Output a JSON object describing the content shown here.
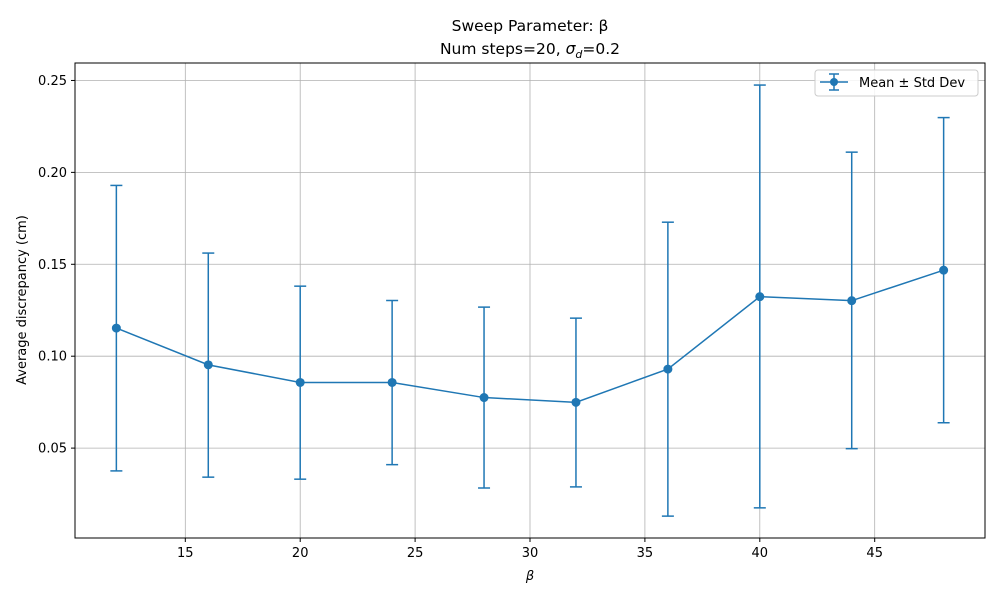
{
  "chart_data": {
    "type": "line",
    "title_line1": "Sweep Parameter: β",
    "title_line2_prefix": "Num steps=20, ",
    "title_line2_sigma": "σ",
    "title_line2_sub": "d",
    "title_line2_suffix": "=0.2",
    "xlabel": "β",
    "ylabel": "Average discrepancy (cm)",
    "x": [
      12,
      16,
      20,
      24,
      28,
      32,
      36,
      40,
      44,
      48
    ],
    "series": [
      {
        "name": "Mean ± Std Dev",
        "y": [
          0.1153,
          0.0953,
          0.0857,
          0.0857,
          0.0775,
          0.0749,
          0.093,
          0.1324,
          0.1302,
          0.1468
        ],
        "err_low": [
          0.0376,
          0.0342,
          0.0331,
          0.041,
          0.0283,
          0.0289,
          0.013,
          0.0175,
          0.0497,
          0.0638
        ],
        "err_high": [
          0.1929,
          0.1561,
          0.1381,
          0.1303,
          0.1267,
          0.1207,
          0.1729,
          0.2475,
          0.211,
          0.2298
        ]
      }
    ],
    "xlim": [
      10.2,
      49.8
    ],
    "ylim": [
      0.0011,
      0.2595
    ],
    "xticks": [
      15,
      20,
      25,
      30,
      35,
      40,
      45
    ],
    "yticks": [
      0.05,
      0.1,
      0.15,
      0.2,
      0.25
    ],
    "ytick_labels": [
      "0.05",
      "0.10",
      "0.15",
      "0.20",
      "0.25"
    ],
    "grid": true,
    "legend_position": "top-right",
    "color": "#1f77b4"
  }
}
